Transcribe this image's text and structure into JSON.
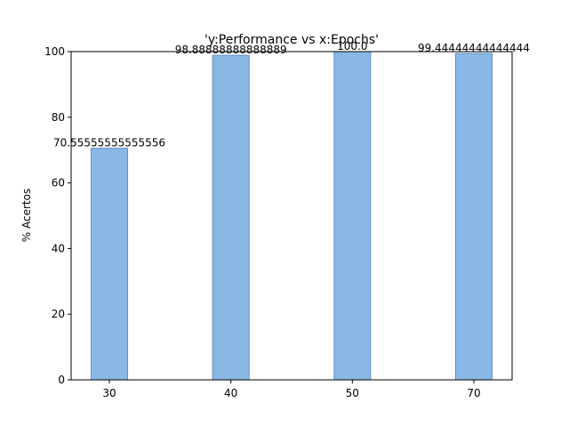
{
  "chart_data": {
    "type": "bar",
    "title": "'y:Performance vs x:Epochs'",
    "xlabel": "",
    "ylabel": "% Acertos",
    "categories": [
      "30",
      "40",
      "50",
      "70"
    ],
    "values": [
      70.55555555555556,
      98.88888888888889,
      100.0,
      99.44444444444444
    ],
    "value_labels": [
      "70.55555555555556",
      "98.88888888888889",
      "100.0",
      "99.44444444444444"
    ],
    "ylim": [
      0,
      100
    ],
    "yticks": [
      0,
      20,
      40,
      60,
      80,
      100
    ],
    "ytick_labels": [
      "0",
      "20",
      "40",
      "60",
      "80",
      "100"
    ],
    "grid": false,
    "bar_color": "#8ab8e6",
    "bar_edge_color": "#5b8fc7"
  }
}
